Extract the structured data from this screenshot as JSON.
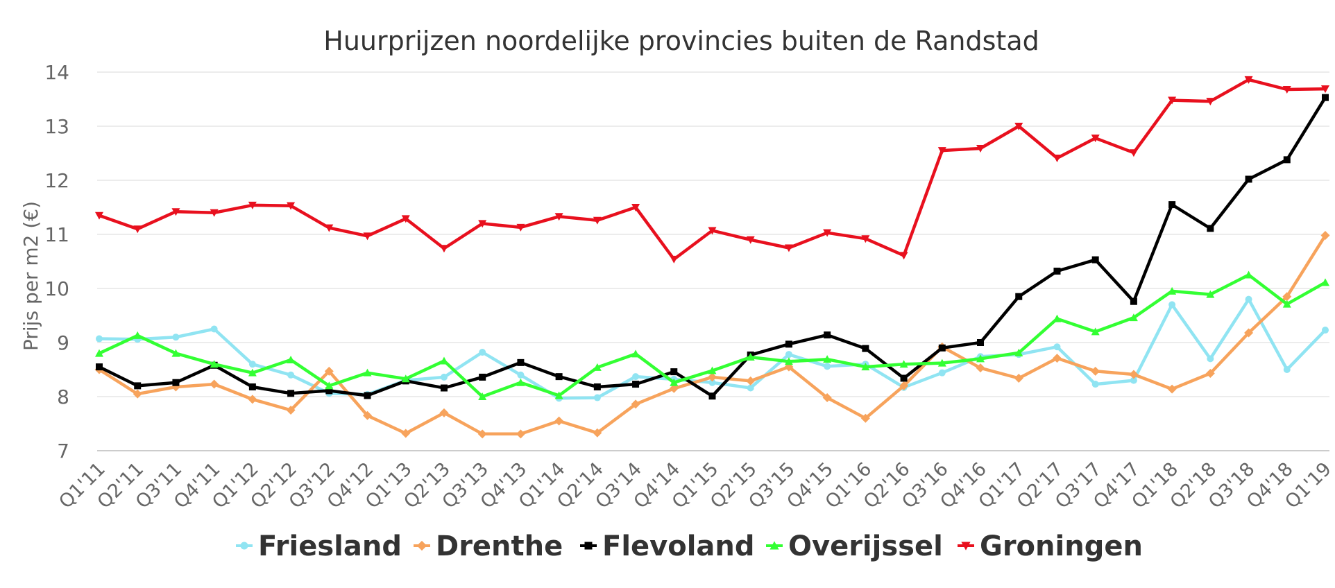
{
  "chart_data": {
    "type": "line",
    "title": "Huurprijzen noordelijke provincies buiten de Randstad",
    "ylabel": "Prijs per m2 (€)",
    "xlabel": "",
    "ylim": [
      7,
      14
    ],
    "yticks": [
      "7",
      "8",
      "9",
      "10",
      "11",
      "12",
      "13",
      "14"
    ],
    "grid": true,
    "legend_position": "bottom",
    "categories": [
      "Q1'11",
      "Q2'11",
      "Q3'11",
      "Q4'11",
      "Q1'12",
      "Q2'12",
      "Q3'12",
      "Q4'12",
      "Q1'13",
      "Q2'13",
      "Q3'13",
      "Q4'13",
      "Q1'14",
      "Q2'14",
      "Q3'14",
      "Q4'14",
      "Q1'15",
      "Q2'15",
      "Q3'15",
      "Q4'15",
      "Q1'16",
      "Q2'16",
      "Q3'16",
      "Q4'16",
      "Q1'17",
      "Q2'17",
      "Q3'17",
      "Q4'17",
      "Q1'18",
      "Q2'18",
      "Q3'18",
      "Q4'18",
      "Q1'19"
    ],
    "series": [
      {
        "name": "Friesland",
        "color": "#90e4f2",
        "marker": "circle",
        "values": [
          9.07,
          9.06,
          9.1,
          9.25,
          8.6,
          8.4,
          8.06,
          8.04,
          8.3,
          8.36,
          8.82,
          8.4,
          7.97,
          7.98,
          8.37,
          8.32,
          8.26,
          8.16,
          8.78,
          8.56,
          8.6,
          8.17,
          8.44,
          8.74,
          8.78,
          8.92,
          8.23,
          8.3,
          9.7,
          8.7,
          9.8,
          8.5,
          9.23
        ]
      },
      {
        "name": "Drenthe",
        "color": "#f7a35c",
        "marker": "diamond",
        "values": [
          8.5,
          8.05,
          8.18,
          8.23,
          7.95,
          7.75,
          8.47,
          7.65,
          7.32,
          7.7,
          7.31,
          7.31,
          7.55,
          7.33,
          7.86,
          8.15,
          8.36,
          8.29,
          8.55,
          7.98,
          7.6,
          8.2,
          8.92,
          8.53,
          8.34,
          8.71,
          8.47,
          8.41,
          8.14,
          8.43,
          9.18,
          9.85,
          10.98
        ]
      },
      {
        "name": "Flevoland",
        "color": "#000000",
        "marker": "square",
        "values": [
          8.55,
          8.2,
          8.26,
          8.58,
          8.18,
          8.06,
          8.11,
          8.02,
          8.29,
          8.16,
          8.36,
          8.63,
          8.37,
          8.18,
          8.23,
          8.46,
          8.01,
          8.77,
          8.97,
          9.14,
          8.89,
          8.34,
          8.9,
          9.0,
          9.85,
          10.32,
          10.53,
          9.76,
          11.55,
          11.11,
          12.02,
          12.38,
          13.53
        ]
      },
      {
        "name": "Overijssel",
        "color": "#33ff33",
        "marker": "triangle",
        "values": [
          8.8,
          9.13,
          8.8,
          8.6,
          8.44,
          8.68,
          8.2,
          8.44,
          8.33,
          8.66,
          8.0,
          8.26,
          8.02,
          8.54,
          8.79,
          8.26,
          8.48,
          8.73,
          8.65,
          8.69,
          8.55,
          8.6,
          8.62,
          8.7,
          8.81,
          9.44,
          9.2,
          9.46,
          9.95,
          9.89,
          10.25,
          9.71,
          10.11
        ]
      },
      {
        "name": "Groningen",
        "color": "#e8101e",
        "marker": "triangle-down",
        "values": [
          11.35,
          11.1,
          11.42,
          11.4,
          11.54,
          11.53,
          11.12,
          10.97,
          11.29,
          10.74,
          11.2,
          11.13,
          11.33,
          11.26,
          11.5,
          10.54,
          11.07,
          10.9,
          10.75,
          11.03,
          10.92,
          10.61,
          12.55,
          12.59,
          13.0,
          12.41,
          12.78,
          12.51,
          13.48,
          13.46,
          13.86,
          13.68,
          13.69
        ]
      }
    ]
  }
}
